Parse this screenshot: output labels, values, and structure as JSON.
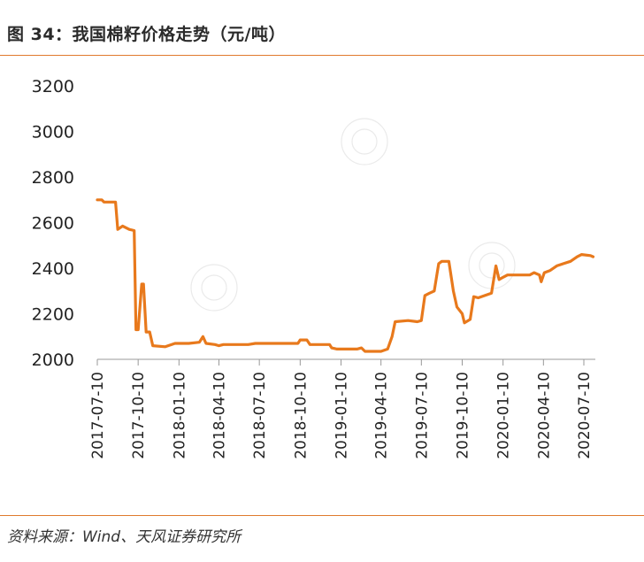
{
  "header": {
    "title": "图 34：我国棉籽价格走势（元/吨）"
  },
  "footer": {
    "source": "资料来源：Wind、天风证券研究所"
  },
  "colors": {
    "line": "#E8791C",
    "rule": "#E07A2E"
  },
  "chart_data": {
    "type": "line",
    "title": "图 34：我国棉籽价格走势（元/吨）",
    "unit": "元/吨",
    "ylim": [
      2000,
      3200
    ],
    "yticks": [
      2000,
      2200,
      2400,
      2600,
      2800,
      3000,
      3200
    ],
    "xlim": [
      "2017-07-10",
      "2020-07-31"
    ],
    "xticks": [
      "2017-07-10",
      "2017-10-10",
      "2018-01-10",
      "2018-04-10",
      "2018-07-10",
      "2018-10-10",
      "2019-01-10",
      "2019-04-10",
      "2019-07-10",
      "2019-10-10",
      "2020-01-10",
      "2020-04-10",
      "2020-07-10"
    ],
    "grid": false,
    "legend": "none",
    "series": [
      {
        "points": [
          [
            "2017-07-10",
            2700
          ],
          [
            "2017-07-20",
            2700
          ],
          [
            "2017-07-25",
            2690
          ],
          [
            "2017-08-20",
            2690
          ],
          [
            "2017-08-25",
            2570
          ],
          [
            "2017-09-05",
            2585
          ],
          [
            "2017-09-20",
            2570
          ],
          [
            "2017-10-01",
            2565
          ],
          [
            "2017-10-05",
            2130
          ],
          [
            "2017-10-10",
            2130
          ],
          [
            "2017-10-18",
            2330
          ],
          [
            "2017-10-22",
            2330
          ],
          [
            "2017-10-28",
            2120
          ],
          [
            "2017-11-05",
            2120
          ],
          [
            "2017-11-12",
            2060
          ],
          [
            "2017-12-10",
            2055
          ],
          [
            "2018-01-01",
            2070
          ],
          [
            "2018-02-01",
            2070
          ],
          [
            "2018-02-25",
            2075
          ],
          [
            "2018-03-05",
            2100
          ],
          [
            "2018-03-12",
            2070
          ],
          [
            "2018-04-01",
            2065
          ],
          [
            "2018-04-10",
            2060
          ],
          [
            "2018-04-20",
            2065
          ],
          [
            "2018-06-15",
            2065
          ],
          [
            "2018-07-01",
            2070
          ],
          [
            "2018-10-05",
            2070
          ],
          [
            "2018-10-10",
            2085
          ],
          [
            "2018-10-25",
            2085
          ],
          [
            "2018-11-01",
            2065
          ],
          [
            "2018-12-15",
            2065
          ],
          [
            "2018-12-20",
            2050
          ],
          [
            "2019-01-01",
            2045
          ],
          [
            "2019-02-15",
            2045
          ],
          [
            "2019-02-25",
            2050
          ],
          [
            "2019-03-05",
            2035
          ],
          [
            "2019-04-10",
            2035
          ],
          [
            "2019-04-25",
            2045
          ],
          [
            "2019-05-05",
            2100
          ],
          [
            "2019-05-12",
            2165
          ],
          [
            "2019-06-10",
            2170
          ],
          [
            "2019-07-01",
            2165
          ],
          [
            "2019-07-10",
            2170
          ],
          [
            "2019-07-18",
            2280
          ],
          [
            "2019-07-28",
            2290
          ],
          [
            "2019-08-08",
            2300
          ],
          [
            "2019-08-18",
            2420
          ],
          [
            "2019-08-25",
            2430
          ],
          [
            "2019-09-10",
            2430
          ],
          [
            "2019-09-20",
            2300
          ],
          [
            "2019-09-28",
            2230
          ],
          [
            "2019-10-10",
            2200
          ],
          [
            "2019-10-15",
            2160
          ],
          [
            "2019-10-28",
            2175
          ],
          [
            "2019-11-05",
            2275
          ],
          [
            "2019-11-15",
            2270
          ],
          [
            "2019-11-30",
            2280
          ],
          [
            "2019-12-15",
            2290
          ],
          [
            "2019-12-25",
            2410
          ],
          [
            "2020-01-01",
            2350
          ],
          [
            "2020-01-10",
            2360
          ],
          [
            "2020-01-20",
            2370
          ],
          [
            "2020-03-10",
            2370
          ],
          [
            "2020-03-20",
            2380
          ],
          [
            "2020-04-01",
            2370
          ],
          [
            "2020-04-05",
            2340
          ],
          [
            "2020-04-12",
            2380
          ],
          [
            "2020-04-25",
            2390
          ],
          [
            "2020-05-10",
            2410
          ],
          [
            "2020-05-25",
            2420
          ],
          [
            "2020-06-10",
            2430
          ],
          [
            "2020-06-25",
            2450
          ],
          [
            "2020-07-05",
            2460
          ],
          [
            "2020-07-25",
            2455
          ],
          [
            "2020-07-31",
            2450
          ]
        ]
      }
    ]
  }
}
